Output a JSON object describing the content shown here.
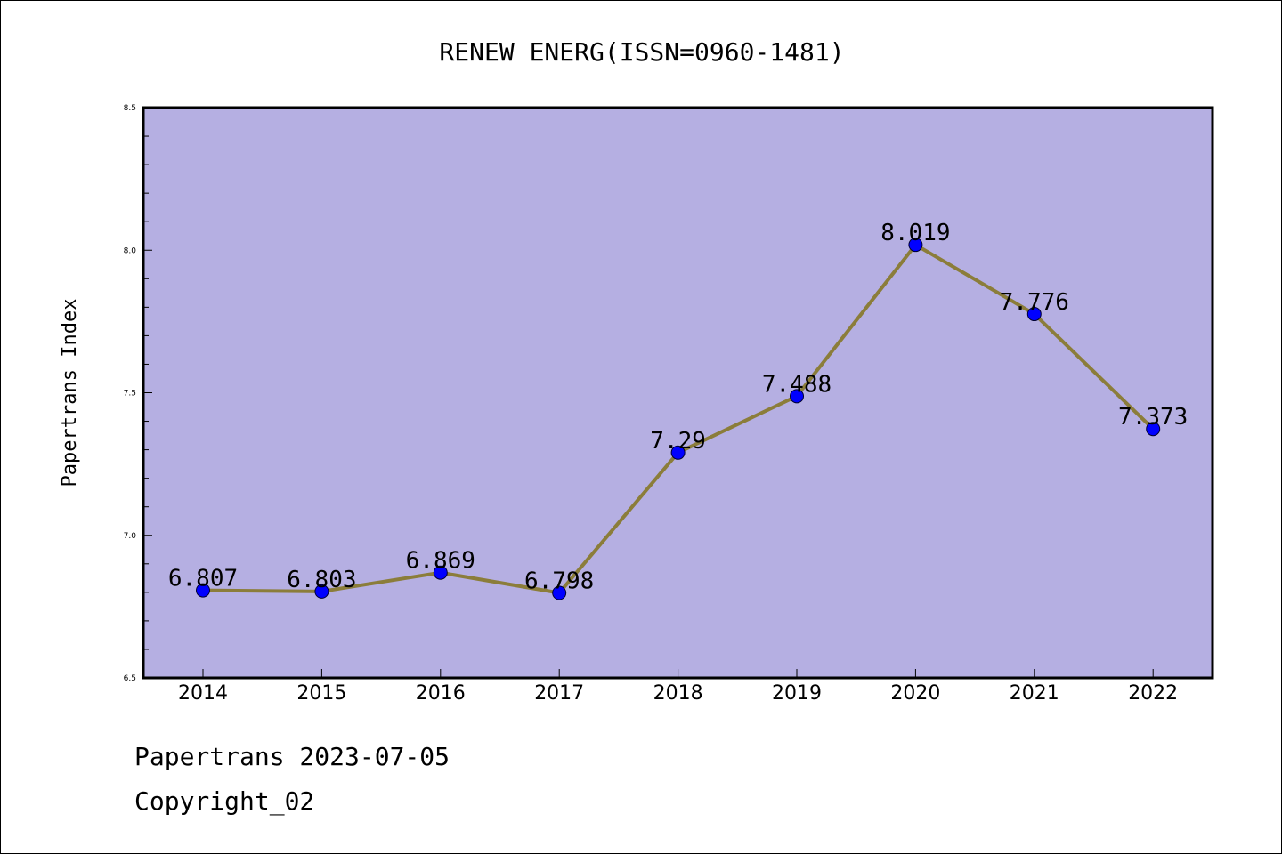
{
  "chart_data": {
    "type": "line",
    "title": "RENEW ENERG(ISSN=0960-1481)",
    "xlabel": "",
    "ylabel": "Papertrans Index",
    "x": [
      "2014",
      "2015",
      "2016",
      "2017",
      "2018",
      "2019",
      "2020",
      "2021",
      "2022"
    ],
    "series": [
      {
        "values": [
          6.807,
          6.803,
          6.869,
          6.798,
          7.29,
          7.488,
          8.019,
          7.776,
          7.373
        ],
        "labels": [
          "6.807",
          "6.803",
          "6.869",
          "6.798",
          "7.29",
          "7.488",
          "8.019",
          "7.776",
          "7.373"
        ]
      }
    ],
    "ylim": [
      6.5,
      8.5
    ],
    "yticks": [
      "6.5",
      "7.0",
      "7.5",
      "8.0",
      "8.5"
    ],
    "grid": false,
    "colors": {
      "plot_background": "#b5afe2",
      "line": "#8b7d3a",
      "marker": "#0000ff"
    }
  },
  "footer": {
    "line1": "Papertrans 2023-07-05",
    "line2": "Copyright_02"
  }
}
